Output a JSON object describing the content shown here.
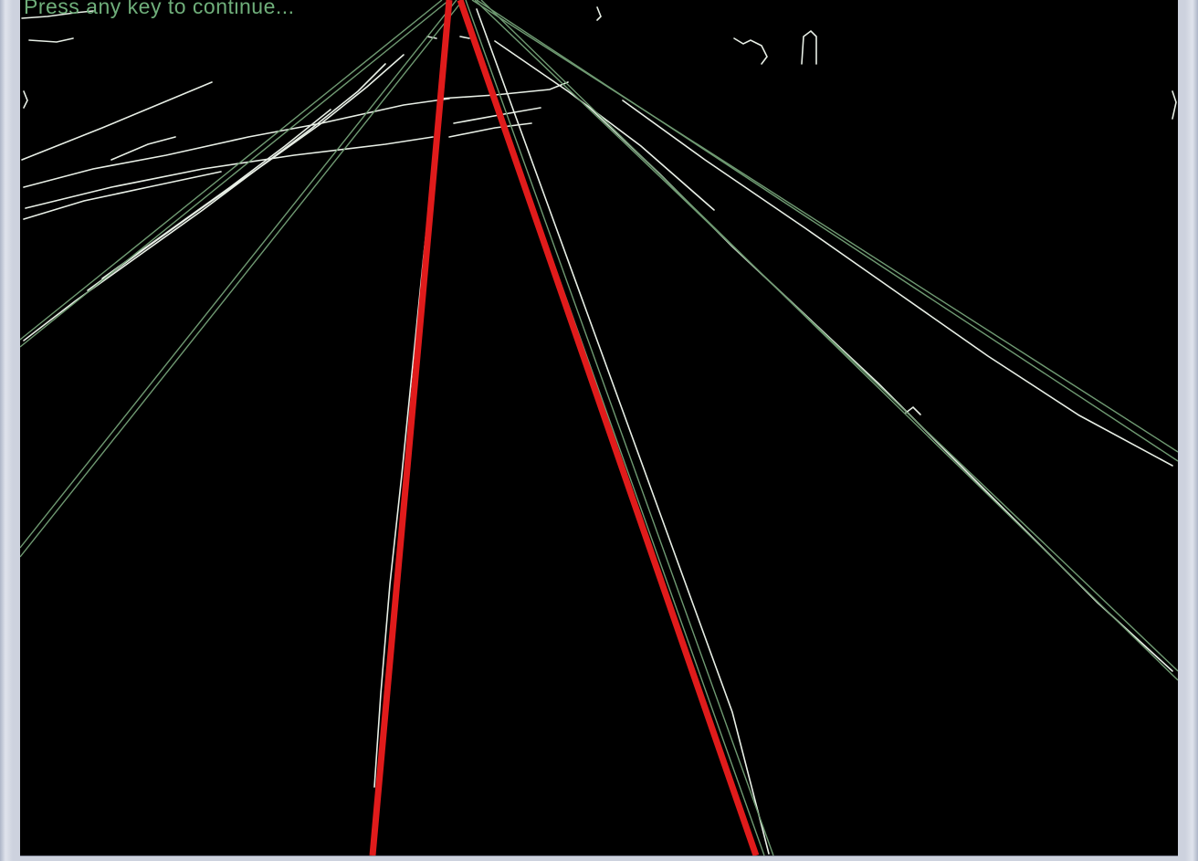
{
  "overlay": {
    "message": "Press any key to continue..."
  },
  "colors": {
    "background": "#000000",
    "hough_line_minor": "#6f9a72",
    "hough_line_major": "#e01b1b",
    "edge": "#e8efe6",
    "frame": "#cdd2de"
  }
}
